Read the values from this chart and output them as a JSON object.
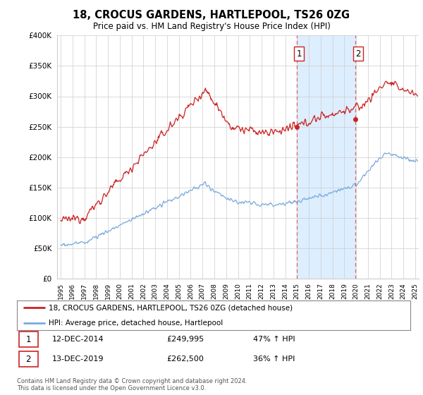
{
  "title": "18, CROCUS GARDENS, HARTLEPOOL, TS26 0ZG",
  "subtitle": "Price paid vs. HM Land Registry's House Price Index (HPI)",
  "legend_line1": "18, CROCUS GARDENS, HARTLEPOOL, TS26 0ZG (detached house)",
  "legend_line2": "HPI: Average price, detached house, Hartlepool",
  "annotation1_label": "1",
  "annotation1_date": "12-DEC-2014",
  "annotation1_price": "£249,995",
  "annotation1_hpi": "47% ↑ HPI",
  "annotation2_label": "2",
  "annotation2_date": "13-DEC-2019",
  "annotation2_price": "£262,500",
  "annotation2_hpi": "36% ↑ HPI",
  "footer": "Contains HM Land Registry data © Crown copyright and database right 2024.\nThis data is licensed under the Open Government Licence v3.0.",
  "ylim": [
    0,
    400000
  ],
  "yticks": [
    0,
    50000,
    100000,
    150000,
    200000,
    250000,
    300000,
    350000,
    400000
  ],
  "sale1_year": 2014.958,
  "sale1_price": 249995,
  "sale2_year": 2019.958,
  "sale2_price": 262500,
  "red_color": "#cc2222",
  "blue_color": "#7aaadd",
  "shaded_color": "#ddeeff",
  "bg_color": "#ffffff",
  "grid_color": "#cccccc",
  "xmin": 1994.7,
  "xmax": 2025.3
}
